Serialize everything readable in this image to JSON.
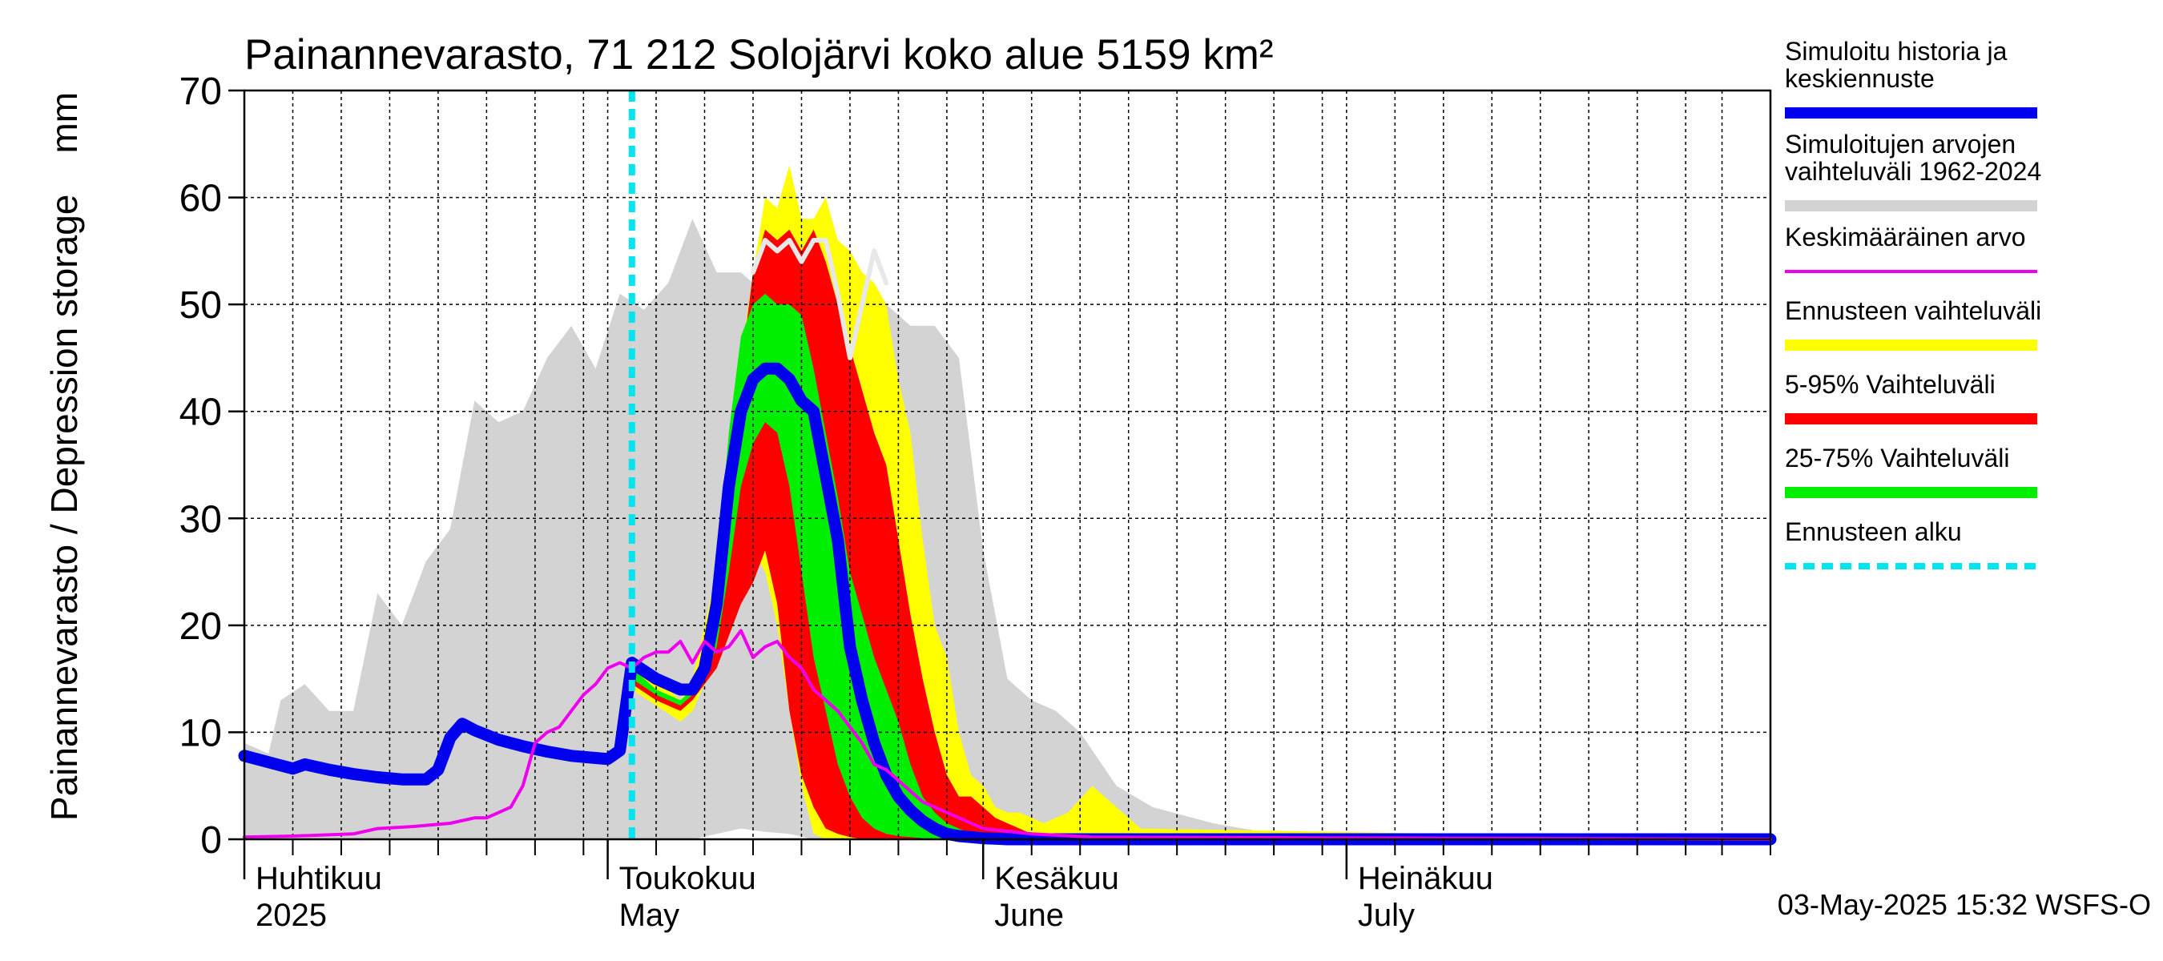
{
  "chart_data": {
    "type": "area",
    "title": "Painannevarasto, 71 212 Solojärvi koko alue 5159 km²",
    "ylabel": "Painannevarasto / Depression storage    mm",
    "ylim": [
      0,
      70
    ],
    "yticks": [
      0,
      10,
      20,
      30,
      40,
      50,
      60,
      70
    ],
    "xlim": [
      "2025-04-01",
      "2025-08-05"
    ],
    "grid": true,
    "legend_placement": "right",
    "month_labels": [
      {
        "date": "2025-04-01",
        "line1": "Huhtikuu",
        "line2": "2025"
      },
      {
        "date": "2025-05-01",
        "line1": "Toukokuu",
        "line2": "May"
      },
      {
        "date": "2025-06-01",
        "line1": "Kesäkuu",
        "line2": "June"
      },
      {
        "date": "2025-07-01",
        "line1": "Heinäkuu",
        "line2": "July"
      }
    ],
    "forecast_start": "2025-05-03",
    "timestamp": "03-May-2025 15:32 WSFS-O",
    "colors": {
      "history": "#0000ee",
      "sim_range": "#d3d3d3",
      "mean": "#ee00ee",
      "forecast_range": "#ffff00",
      "p5_95": "#ff0000",
      "p25_75": "#00ee00",
      "forecast_start": "#00e5ee",
      "grid": "#000000"
    },
    "legend": [
      {
        "label_lines": [
          "Simuloitu historia ja",
          "keskiennuste"
        ],
        "color": "#0000ee",
        "style": "thick"
      },
      {
        "label_lines": [
          "Simuloitujen arvojen",
          "vaihteluväli 1962-2024"
        ],
        "color": "#d3d3d3",
        "style": "thick"
      },
      {
        "label_lines": [
          "Keskimääräinen arvo"
        ],
        "color": "#ee00ee",
        "style": "thin"
      },
      {
        "label_lines": [
          "Ennusteen vaihteluväli"
        ],
        "color": "#ffff00",
        "style": "thick"
      },
      {
        "label_lines": [
          "5-95% Vaihteluväli"
        ],
        "color": "#ff0000",
        "style": "thick"
      },
      {
        "label_lines": [
          "25-75% Vaihteluväli"
        ],
        "color": "#00ee00",
        "style": "thick"
      },
      {
        "label_lines": [
          "Ennusteen alku"
        ],
        "color": "#00e5ee",
        "style": "dashed"
      }
    ],
    "series": [
      {
        "name": "Simuloitujen arvojen vaihteluväli 1962-2024",
        "kind": "band",
        "x": [
          "2025-04-01",
          "2025-04-03",
          "2025-04-04",
          "2025-04-06",
          "2025-04-08",
          "2025-04-10",
          "2025-04-12",
          "2025-04-14",
          "2025-04-16",
          "2025-04-18",
          "2025-04-20",
          "2025-04-22",
          "2025-04-24",
          "2025-04-26",
          "2025-04-28",
          "2025-04-30",
          "2025-05-02",
          "2025-05-04",
          "2025-05-06",
          "2025-05-08",
          "2025-05-10",
          "2025-05-12",
          "2025-05-14",
          "2025-05-16",
          "2025-05-18",
          "2025-05-20",
          "2025-05-22",
          "2025-05-24",
          "2025-05-26",
          "2025-05-28",
          "2025-05-30",
          "2025-06-01",
          "2025-06-03",
          "2025-06-05",
          "2025-06-07",
          "2025-06-09",
          "2025-06-12",
          "2025-06-15",
          "2025-06-20",
          "2025-06-25",
          "2025-08-05"
        ],
        "upper": [
          9,
          8,
          13,
          14.5,
          12,
          12,
          23,
          20,
          26,
          29,
          41,
          39,
          40,
          45,
          48,
          44,
          51,
          49.5,
          52,
          58,
          53,
          53,
          51,
          52,
          53,
          52,
          51,
          50,
          48,
          48,
          45,
          27,
          15,
          13,
          12,
          10,
          5,
          3,
          1.5,
          0.5,
          0
        ],
        "lower": [
          0,
          0,
          0,
          0,
          0,
          0,
          0,
          0,
          0,
          0,
          0,
          0,
          0,
          0,
          0,
          0,
          0,
          0,
          0,
          0,
          0.5,
          1,
          0.7,
          0.5,
          0,
          0,
          0,
          0,
          0,
          0,
          0,
          0,
          0,
          0,
          0,
          0,
          0,
          0,
          0,
          0,
          0
        ]
      },
      {
        "name": "Ennusteen vaihteluväli",
        "kind": "band",
        "x": [
          "2025-05-03",
          "2025-05-05",
          "2025-05-07",
          "2025-05-08",
          "2025-05-10",
          "2025-05-12",
          "2025-05-13",
          "2025-05-14",
          "2025-05-15",
          "2025-05-16",
          "2025-05-17",
          "2025-05-18",
          "2025-05-19",
          "2025-05-20",
          "2025-05-21",
          "2025-05-22",
          "2025-05-23",
          "2025-05-24",
          "2025-05-25",
          "2025-05-26",
          "2025-05-27",
          "2025-05-28",
          "2025-05-29",
          "2025-05-30",
          "2025-05-31",
          "2025-06-01",
          "2025-06-02",
          "2025-06-03",
          "2025-06-04",
          "2025-06-05",
          "2025-06-06",
          "2025-06-08",
          "2025-06-10",
          "2025-06-12",
          "2025-06-14",
          "2025-08-05"
        ],
        "upper": [
          17,
          15,
          13,
          15,
          25,
          45,
          53,
          60,
          59,
          63,
          58,
          58,
          60,
          56,
          55,
          53,
          52,
          50,
          43,
          38,
          28,
          20,
          17,
          10,
          6,
          5,
          3,
          2.5,
          2.5,
          2,
          1.5,
          2.5,
          5,
          3,
          1,
          0
        ],
        "lower": [
          14,
          12.5,
          11,
          12,
          17,
          22,
          27,
          25,
          20,
          12,
          5,
          0.5,
          0,
          0,
          0,
          0,
          0,
          0,
          0,
          0,
          0,
          0,
          0,
          0,
          0,
          0,
          0,
          0,
          0,
          0,
          0,
          0,
          0,
          0,
          0,
          0
        ]
      },
      {
        "name": "5-95% Vaihteluväli",
        "kind": "band",
        "x": [
          "2025-05-03",
          "2025-05-05",
          "2025-05-07",
          "2025-05-08",
          "2025-05-10",
          "2025-05-11",
          "2025-05-12",
          "2025-05-13",
          "2025-05-14",
          "2025-05-15",
          "2025-05-16",
          "2025-05-17",
          "2025-05-18",
          "2025-05-19",
          "2025-05-20",
          "2025-05-21",
          "2025-05-22",
          "2025-05-23",
          "2025-05-24",
          "2025-05-25",
          "2025-05-26",
          "2025-05-27",
          "2025-05-28",
          "2025-05-29",
          "2025-05-30",
          "2025-05-31",
          "2025-06-01",
          "2025-06-02",
          "2025-06-03",
          "2025-06-04",
          "2025-06-05",
          "2025-06-07",
          "2025-08-05"
        ],
        "upper": [
          16,
          14,
          12.5,
          14,
          21,
          32,
          44,
          53,
          57,
          56,
          57,
          55,
          57,
          54,
          50,
          46,
          42,
          38,
          35,
          28,
          21,
          15,
          10,
          6,
          4,
          4,
          3,
          2,
          1.5,
          1,
          0.5,
          0.2,
          0
        ],
        "lower": [
          14.5,
          13,
          12,
          13,
          16,
          19,
          22,
          24,
          27,
          22,
          12,
          6,
          3,
          1,
          0.5,
          0.2,
          0,
          0,
          0,
          0,
          0,
          0,
          0,
          0,
          0,
          0,
          0,
          0,
          0,
          0,
          0,
          0,
          0
        ]
      },
      {
        "name": "25-75% Vaihteluväli",
        "kind": "band",
        "x": [
          "2025-05-03",
          "2025-05-05",
          "2025-05-07",
          "2025-05-08",
          "2025-05-09",
          "2025-05-10",
          "2025-05-11",
          "2025-05-12",
          "2025-05-13",
          "2025-05-14",
          "2025-05-15",
          "2025-05-16",
          "2025-05-17",
          "2025-05-18",
          "2025-05-19",
          "2025-05-20",
          "2025-05-21",
          "2025-05-22",
          "2025-05-23",
          "2025-05-24",
          "2025-05-25",
          "2025-05-26",
          "2025-05-27",
          "2025-05-28",
          "2025-05-29",
          "2025-05-30",
          "2025-05-31",
          "2025-06-01",
          "2025-06-02",
          "2025-06-03",
          "2025-08-05"
        ],
        "upper": [
          16,
          14,
          13,
          14,
          18,
          25,
          38,
          47,
          50,
          51,
          50,
          50,
          49,
          44,
          38,
          32,
          25,
          21,
          17,
          14,
          11,
          7,
          4,
          2.5,
          1.5,
          1,
          0.5,
          0.3,
          0.2,
          0.1,
          0
        ],
        "lower": [
          15,
          13.5,
          12.5,
          13.5,
          15,
          18,
          25,
          33,
          37,
          39,
          38,
          33,
          25,
          17,
          12,
          7,
          4,
          2,
          1,
          0.5,
          0.3,
          0.2,
          0.1,
          0,
          0,
          0,
          0,
          0,
          0,
          0,
          0
        ]
      },
      {
        "name": "history_max_line",
        "kind": "line",
        "x": [
          "2025-05-13",
          "2025-05-14",
          "2025-05-15",
          "2025-05-16",
          "2025-05-17",
          "2025-05-18",
          "2025-05-19",
          "2025-05-20",
          "2025-05-21",
          "2025-05-22",
          "2025-05-23",
          "2025-05-24"
        ],
        "values": [
          53,
          56,
          55,
          56,
          54,
          56,
          56,
          51,
          45,
          50,
          55,
          52
        ]
      },
      {
        "name": "Simuloitu historia ja keskiennuste",
        "kind": "line",
        "x": [
          "2025-04-01",
          "2025-04-03",
          "2025-04-05",
          "2025-04-06",
          "2025-04-08",
          "2025-04-10",
          "2025-04-12",
          "2025-04-14",
          "2025-04-16",
          "2025-04-17",
          "2025-04-18",
          "2025-04-19",
          "2025-04-20",
          "2025-04-22",
          "2025-04-24",
          "2025-04-26",
          "2025-04-28",
          "2025-04-30",
          "2025-05-01",
          "2025-05-02",
          "2025-05-03",
          "2025-05-05",
          "2025-05-07",
          "2025-05-08",
          "2025-05-09",
          "2025-05-10",
          "2025-05-11",
          "2025-05-12",
          "2025-05-13",
          "2025-05-14",
          "2025-05-15",
          "2025-05-16",
          "2025-05-17",
          "2025-05-18",
          "2025-05-19",
          "2025-05-20",
          "2025-05-21",
          "2025-05-22",
          "2025-05-23",
          "2025-05-24",
          "2025-05-25",
          "2025-05-26",
          "2025-05-27",
          "2025-05-28",
          "2025-05-29",
          "2025-05-30",
          "2025-05-31",
          "2025-06-01",
          "2025-06-02",
          "2025-06-03",
          "2025-06-05",
          "2025-08-05"
        ],
        "values": [
          7.8,
          7.2,
          6.6,
          7,
          6.5,
          6.1,
          5.8,
          5.6,
          5.6,
          6.5,
          9.5,
          10.8,
          10.2,
          9.3,
          8.7,
          8.2,
          7.8,
          7.6,
          7.5,
          8.3,
          16.5,
          15,
          14,
          14,
          16,
          22,
          33,
          40,
          43,
          44,
          44,
          43,
          41,
          40,
          34,
          28,
          18,
          13,
          9,
          6,
          4,
          2.7,
          1.7,
          1,
          0.5,
          0.3,
          0.2,
          0.1,
          0.05,
          0,
          0,
          0
        ]
      },
      {
        "name": "Keskimääräinen arvo",
        "kind": "line",
        "x": [
          "2025-04-01",
          "2025-04-05",
          "2025-04-10",
          "2025-04-12",
          "2025-04-15",
          "2025-04-18",
          "2025-04-20",
          "2025-04-21",
          "2025-04-22",
          "2025-04-23",
          "2025-04-24",
          "2025-04-25",
          "2025-04-26",
          "2025-04-27",
          "2025-04-28",
          "2025-04-29",
          "2025-04-30",
          "2025-05-01",
          "2025-05-02",
          "2025-05-03",
          "2025-05-04",
          "2025-05-05",
          "2025-05-06",
          "2025-05-07",
          "2025-05-08",
          "2025-05-09",
          "2025-05-10",
          "2025-05-11",
          "2025-05-12",
          "2025-05-13",
          "2025-05-14",
          "2025-05-15",
          "2025-05-16",
          "2025-05-17",
          "2025-05-18",
          "2025-05-19",
          "2025-05-20",
          "2025-05-21",
          "2025-05-22",
          "2025-05-23",
          "2025-05-24",
          "2025-05-25",
          "2025-05-26",
          "2025-05-27",
          "2025-05-28",
          "2025-05-29",
          "2025-05-30",
          "2025-06-01",
          "2025-06-05",
          "2025-06-10",
          "2025-08-05"
        ],
        "values": [
          0.2,
          0.3,
          0.5,
          1,
          1.2,
          1.5,
          2,
          2,
          2.5,
          3,
          5,
          9,
          10,
          10.5,
          12,
          13.5,
          14.5,
          16,
          16.5,
          16,
          17,
          17.5,
          17.5,
          18.5,
          16.5,
          18.5,
          17.5,
          18,
          19.5,
          17,
          18,
          18.5,
          17,
          16,
          14,
          13,
          12,
          10.5,
          9,
          7,
          6.5,
          5.5,
          4.5,
          3.5,
          3,
          2.5,
          2,
          1,
          0.5,
          0.2,
          0
        ]
      }
    ]
  }
}
